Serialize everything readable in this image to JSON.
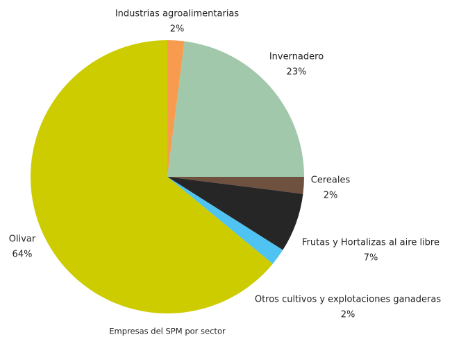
{
  "chart_data": {
    "type": "pie",
    "title": "Empresas del SPM por sector",
    "categories": [
      "Industrias agroalimentarias",
      "Invernadero",
      "Cereales",
      "Frutas y Hortalizas al aire libre",
      "Otros cultivos y explotaciones ganaderas",
      "Olivar"
    ],
    "values": [
      2,
      23,
      2,
      7,
      2,
      64
    ],
    "value_labels": [
      "2%",
      "23%",
      "2%",
      "7%",
      "2%",
      "64%"
    ],
    "colors": [
      "#f79b4f",
      "#a1c8aa",
      "#6f5140",
      "#262626",
      "#4fc3f2",
      "#cccc00"
    ]
  }
}
